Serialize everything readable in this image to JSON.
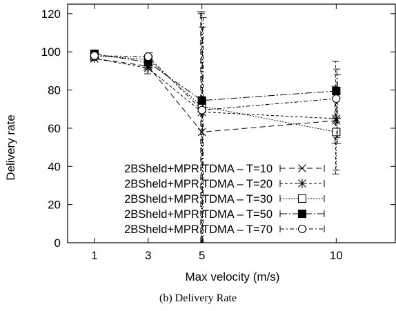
{
  "caption": "(b) Delivery Rate",
  "chart_data": {
    "type": "line",
    "xlabel": "Max velocity (m/s)",
    "ylabel": "Delivery rate",
    "xlim": [
      0,
      12.2
    ],
    "ylim": [
      0,
      125
    ],
    "x_categories": [
      "1",
      "3",
      "5",
      "10"
    ],
    "y_ticks": [
      0,
      20,
      40,
      60,
      80,
      100,
      120
    ],
    "grid": false,
    "legend_position": "bottom-left",
    "series": [
      {
        "name": "2BSheld+MPR TDMA – T=10",
        "marker": "x",
        "dash": "8,5",
        "values": [
          96.5,
          92.5,
          58,
          64
        ],
        "errors": [
          [
            95.5,
            97.5
          ],
          [
            90.5,
            94.5
          ],
          [
            -1,
            121
          ],
          [
            52,
            82
          ]
        ]
      },
      {
        "name": "2BSheld+MPR TDMA – T=20",
        "marker": "star",
        "dash": "4,3",
        "values": [
          96.5,
          91.5,
          68.5,
          65
        ],
        "errors": [
          [
            95.5,
            97.5
          ],
          [
            88.5,
            94.5
          ],
          [
            -1,
            120
          ],
          [
            36,
            95
          ]
        ]
      },
      {
        "name": "2BSheld+MPR TDMA – T=30",
        "marker": "square-open",
        "dash": "2,2",
        "values": [
          98,
          96,
          71.5,
          58
        ],
        "errors": [
          [
            97,
            99
          ],
          [
            93.5,
            98.5
          ],
          [
            -1,
            121
          ],
          [
            38,
            80
          ]
        ]
      },
      {
        "name": "2BSheld+MPR TDMA – T=50",
        "marker": "square-filled",
        "dash": "10,3,2,3",
        "values": [
          99,
          94.5,
          74.5,
          79.5
        ],
        "errors": [
          [
            98,
            100
          ],
          [
            92,
            97
          ],
          [
            -1,
            113
          ],
          [
            55,
            91
          ]
        ]
      },
      {
        "name": "2BSheld+MPR TDMA – T=70",
        "marker": "circle-open",
        "dash": "6,3,2,3",
        "values": [
          98,
          97.5,
          69.5,
          75.5
        ],
        "errors": [
          [
            97,
            99
          ],
          [
            95.5,
            99.5
          ],
          [
            -1,
            118
          ],
          [
            52,
            88
          ]
        ]
      }
    ]
  }
}
